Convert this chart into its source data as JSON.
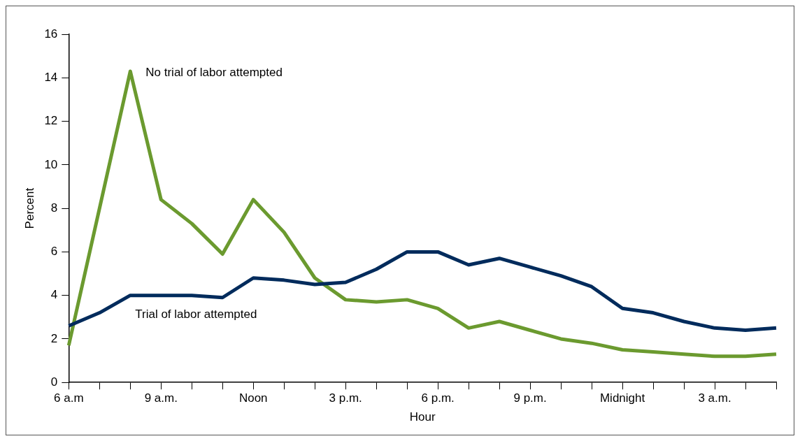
{
  "chart_data": {
    "type": "line",
    "xlabel": "Hour",
    "ylabel": "Percent",
    "categories": [
      "6 a.m",
      null,
      null,
      "9 a.m.",
      null,
      null,
      "Noon",
      null,
      null,
      "3 p.m.",
      null,
      null,
      "6 p.m.",
      null,
      null,
      "9 p.m.",
      null,
      null,
      "Midnight",
      null,
      null,
      "3 a.m.",
      null,
      null
    ],
    "series": [
      {
        "name": "Trial of labor attempted",
        "color": "#002b5c",
        "values": [
          2.6,
          3.2,
          4.0,
          4.0,
          4.0,
          3.9,
          4.8,
          4.7,
          4.5,
          4.6,
          5.2,
          6.0,
          6.0,
          5.4,
          5.7,
          5.3,
          4.9,
          4.4,
          3.4,
          3.2,
          2.8,
          2.5,
          2.4,
          2.5
        ]
      },
      {
        "name": "No trial of labor attempted",
        "color": "#6b9a2f",
        "values": [
          1.7,
          8.0,
          14.3,
          8.4,
          7.3,
          5.9,
          8.4,
          6.9,
          4.8,
          3.8,
          3.7,
          3.8,
          3.4,
          2.5,
          2.8,
          2.4,
          2.0,
          1.8,
          1.5,
          1.4,
          1.3,
          1.2,
          1.2,
          1.3
        ]
      }
    ],
    "ylim": [
      0,
      16
    ],
    "yticks": [
      0,
      2,
      4,
      6,
      8,
      10,
      12,
      14,
      16
    ],
    "grid": false,
    "legend": false,
    "marker": "none",
    "line_style": "solid"
  }
}
